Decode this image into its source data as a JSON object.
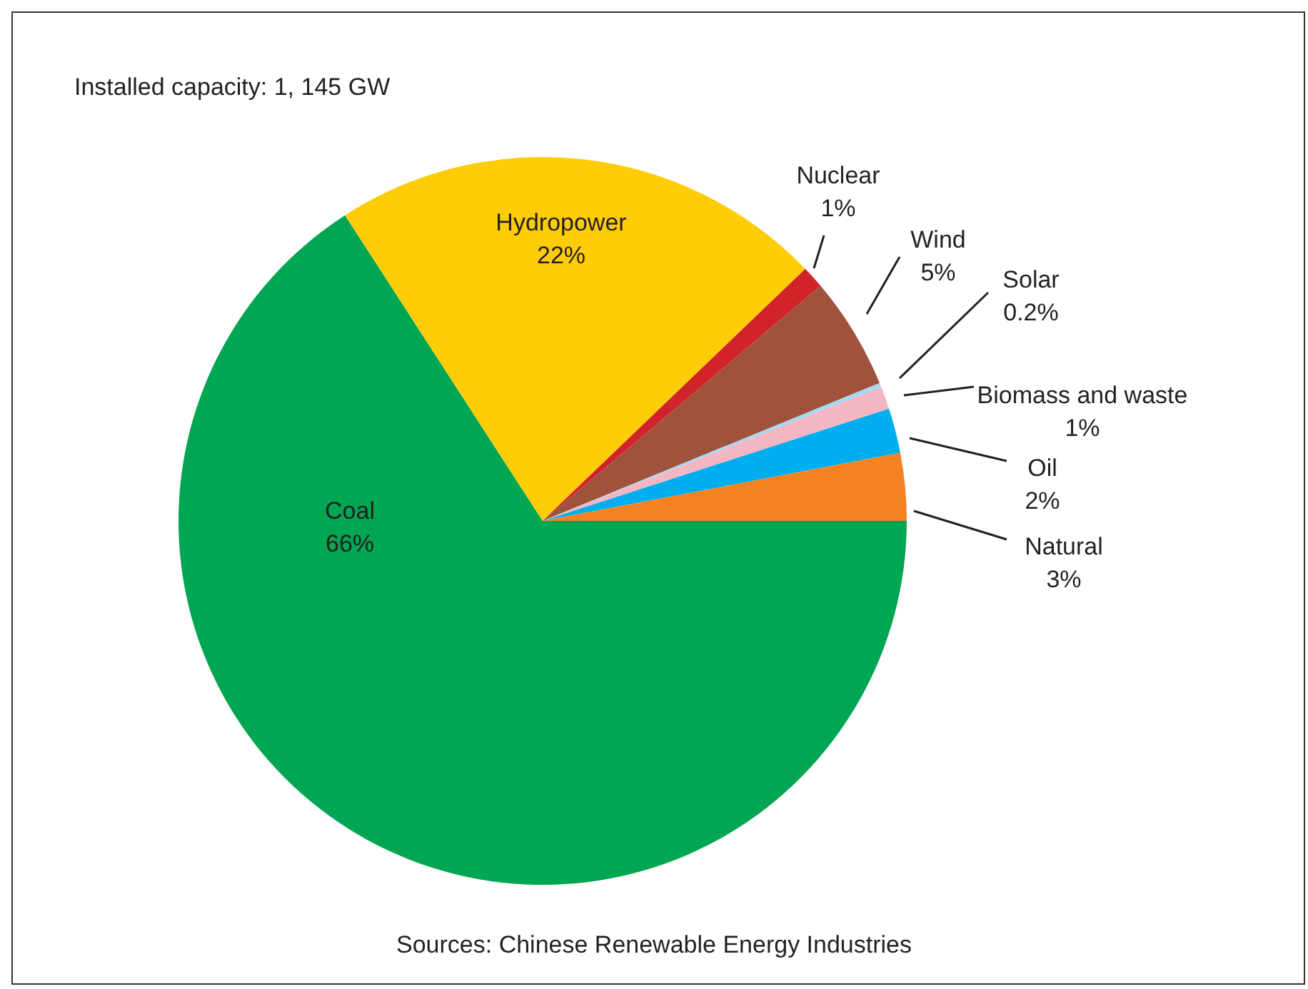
{
  "chart_data": {
    "type": "pie",
    "title": "Installed capacity: 1, 145 GW",
    "categories": [
      "Coal",
      "Hydropower",
      "Nuclear",
      "Wind",
      "Solar",
      "Biomass and waste",
      "Oil",
      "Natural"
    ],
    "values": [
      66,
      22,
      1,
      5,
      0.2,
      1,
      2,
      3
    ],
    "value_labels": [
      "66%",
      "22%",
      "1%",
      "5%",
      "0.2%",
      "1%",
      "2%",
      "3%"
    ],
    "colors": [
      "#00a651",
      "#ffcc08",
      "#d2232a",
      "#a0523d",
      "#a6d8f0",
      "#f4b6c2",
      "#00aeef",
      "#f58220"
    ],
    "legend": false,
    "annotations": [
      "Sources: Chinese Renewable Energy Industries"
    ]
  }
}
